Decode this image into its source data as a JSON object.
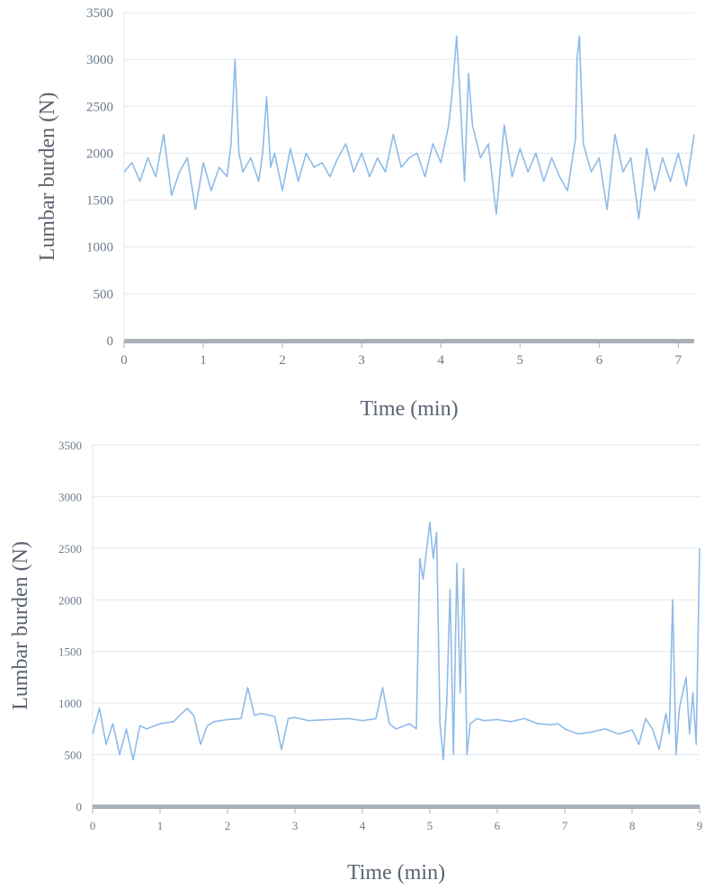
{
  "colors": {
    "line": "#8fbbe8",
    "grid": "#e3e7ec",
    "axis": "#a9b0b8",
    "text": "#5a6470"
  },
  "chart_data": [
    {
      "type": "line",
      "title": "",
      "xlabel": "Time (min)",
      "ylabel": "Lumbar burden (N)",
      "xlim": [
        0,
        7.2
      ],
      "ylim": [
        0,
        3500
      ],
      "x_ticks": [
        "0",
        "1",
        "2",
        "3",
        "4",
        "5",
        "6",
        "7"
      ],
      "y_ticks": [
        "0",
        "500",
        "1000",
        "1500",
        "2000",
        "2500",
        "3000",
        "3500"
      ],
      "grid": "horizontal",
      "x": [
        0,
        0.1,
        0.2,
        0.3,
        0.4,
        0.5,
        0.6,
        0.7,
        0.8,
        0.9,
        1.0,
        1.1,
        1.2,
        1.3,
        1.35,
        1.4,
        1.45,
        1.5,
        1.6,
        1.7,
        1.75,
        1.8,
        1.85,
        1.9,
        2.0,
        2.1,
        2.2,
        2.3,
        2.4,
        2.5,
        2.6,
        2.7,
        2.8,
        2.9,
        3.0,
        3.1,
        3.2,
        3.3,
        3.4,
        3.5,
        3.6,
        3.7,
        3.8,
        3.9,
        4.0,
        4.1,
        4.15,
        4.2,
        4.25,
        4.3,
        4.35,
        4.4,
        4.5,
        4.6,
        4.7,
        4.8,
        4.9,
        5.0,
        5.1,
        5.2,
        5.3,
        5.4,
        5.5,
        5.6,
        5.7,
        5.72,
        5.75,
        5.8,
        5.9,
        6.0,
        6.1,
        6.2,
        6.3,
        6.4,
        6.5,
        6.6,
        6.7,
        6.8,
        6.9,
        7.0,
        7.1,
        7.2
      ],
      "y": [
        1800,
        1900,
        1700,
        1950,
        1750,
        2200,
        1550,
        1800,
        1950,
        1400,
        1900,
        1600,
        1850,
        1750,
        2100,
        3000,
        2000,
        1800,
        1950,
        1700,
        2000,
        2600,
        1850,
        2000,
        1600,
        2050,
        1700,
        2000,
        1850,
        1900,
        1750,
        1950,
        2100,
        1800,
        2000,
        1750,
        1950,
        1800,
        2200,
        1850,
        1950,
        2000,
        1750,
        2100,
        1900,
        2300,
        2700,
        3250,
        2500,
        1700,
        2850,
        2300,
        1950,
        2100,
        1350,
        2300,
        1750,
        2050,
        1800,
        2000,
        1700,
        1950,
        1750,
        1600,
        2150,
        3000,
        3250,
        2100,
        1800,
        1950,
        1400,
        2200,
        1800,
        1950,
        1300,
        2050,
        1600,
        1950,
        1700,
        2000,
        1650,
        2200
      ]
    },
    {
      "type": "line",
      "title": "",
      "xlabel": "Time (min)",
      "ylabel": "Lumbar burden (N)",
      "xlim": [
        0,
        9
      ],
      "ylim": [
        0,
        3500
      ],
      "x_ticks": [
        "0",
        "1",
        "2",
        "3",
        "4",
        "5",
        "6",
        "7",
        "8",
        "9"
      ],
      "y_ticks": [
        "0",
        "500",
        "1000",
        "1500",
        "2000",
        "2500",
        "3000",
        "3500"
      ],
      "grid": "horizontal",
      "x": [
        0,
        0.1,
        0.2,
        0.3,
        0.4,
        0.5,
        0.6,
        0.7,
        0.8,
        1.0,
        1.2,
        1.4,
        1.5,
        1.6,
        1.7,
        1.8,
        2.0,
        2.2,
        2.3,
        2.4,
        2.5,
        2.7,
        2.8,
        2.9,
        3.0,
        3.2,
        3.5,
        3.8,
        4.0,
        4.2,
        4.3,
        4.4,
        4.5,
        4.7,
        4.8,
        4.85,
        4.9,
        5.0,
        5.05,
        5.1,
        5.15,
        5.2,
        5.25,
        5.3,
        5.35,
        5.4,
        5.45,
        5.5,
        5.55,
        5.6,
        5.7,
        5.8,
        6.0,
        6.2,
        6.4,
        6.6,
        6.8,
        6.9,
        7.0,
        7.2,
        7.4,
        7.6,
        7.8,
        8.0,
        8.1,
        8.2,
        8.3,
        8.4,
        8.5,
        8.55,
        8.6,
        8.65,
        8.7,
        8.8,
        8.85,
        8.9,
        8.95,
        9.0
      ],
      "y": [
        700,
        950,
        600,
        800,
        500,
        750,
        450,
        780,
        750,
        800,
        820,
        950,
        880,
        600,
        780,
        820,
        840,
        850,
        1150,
        880,
        900,
        870,
        550,
        850,
        860,
        830,
        840,
        850,
        830,
        850,
        1150,
        800,
        750,
        800,
        750,
        2400,
        2200,
        2750,
        2400,
        2650,
        800,
        450,
        1000,
        2100,
        500,
        2350,
        1100,
        2300,
        500,
        800,
        850,
        830,
        840,
        820,
        850,
        800,
        790,
        800,
        750,
        700,
        720,
        750,
        700,
        740,
        600,
        850,
        750,
        550,
        900,
        700,
        2000,
        500,
        950,
        1250,
        700,
        1100,
        600,
        2500
      ]
    }
  ]
}
